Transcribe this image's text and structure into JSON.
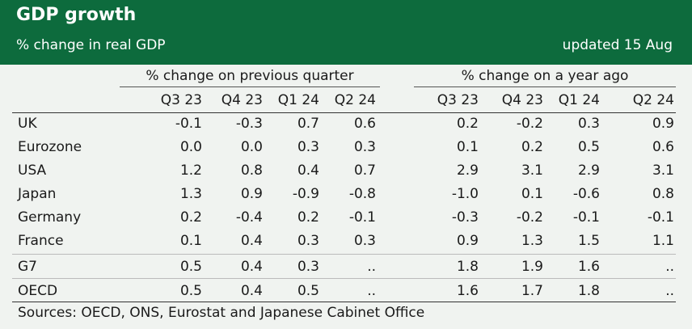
{
  "header": {
    "title": "GDP growth",
    "subtitle": "% change in real GDP",
    "updated": "updated 15 Aug"
  },
  "table": {
    "groups": [
      "% change on previous quarter",
      "% change on a year ago"
    ],
    "columns": [
      "Q3 23",
      "Q4 23",
      "Q1 24",
      "Q2 24",
      "Q3 23",
      "Q4 23",
      "Q1 24",
      "Q2 24"
    ],
    "rows": [
      [
        "UK",
        "-0.1",
        "-0.3",
        "0.7",
        "0.6",
        "0.2",
        "-0.2",
        "0.3",
        "0.9"
      ],
      [
        "Eurozone",
        "0.0",
        "0.0",
        "0.3",
        "0.3",
        "0.1",
        "0.2",
        "0.5",
        "0.6"
      ],
      [
        "USA",
        "1.2",
        "0.8",
        "0.4",
        "0.7",
        "2.9",
        "3.1",
        "2.9",
        "3.1"
      ],
      [
        "Japan",
        "1.3",
        "0.9",
        "-0.9",
        "-0.8",
        "-1.0",
        "0.1",
        "-0.6",
        "0.8"
      ],
      [
        "Germany",
        "0.2",
        "-0.4",
        "0.2",
        "-0.1",
        "-0.3",
        "-0.2",
        "-0.1",
        "-0.1"
      ],
      [
        "France",
        "0.1",
        "0.4",
        "0.3",
        "0.3",
        "0.9",
        "1.3",
        "1.5",
        "1.1"
      ],
      [
        "G7",
        "0.5",
        "0.4",
        "0.3",
        "..",
        "1.8",
        "1.9",
        "1.6",
        ".."
      ],
      [
        "OECD",
        "0.5",
        "0.4",
        "0.5",
        "..",
        "1.6",
        "1.7",
        "1.8",
        ".."
      ]
    ]
  },
  "footer": {
    "source": "Sources: OECD, ONS, Eurostat and Japanese Cabinet Office"
  }
}
